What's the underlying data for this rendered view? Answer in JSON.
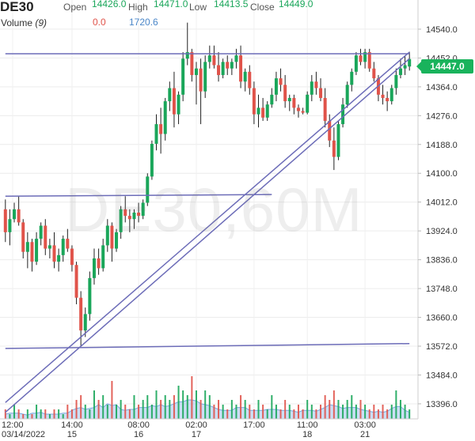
{
  "header": {
    "symbol": "DE30",
    "open_label": "Open",
    "open": "14426.0",
    "high_label": "High",
    "high": "14471.0",
    "low_label": "Low",
    "low": "14413.5",
    "close_label": "Close",
    "close": "14449.0",
    "volume_label": "Volume",
    "volume_period": "(9)",
    "volume_value_1": "0.0",
    "volume_value_2": "1720.6"
  },
  "watermark": "DE30,60M",
  "last_price": "14447.0",
  "colors": {
    "up": "#1aa65a",
    "down": "#e0534a",
    "trendline": "#6c6cb8",
    "volume_area": "#a8c8ee",
    "last_tag": "#19b35c"
  },
  "chart_data": {
    "type": "candlestick",
    "title": "DE30,60M",
    "y_ticks": [
      14540.0,
      14452.0,
      14364.0,
      14276.0,
      14188.0,
      14100.0,
      14012.0,
      13924.0,
      13836.0,
      13748.0,
      13660.0,
      13572.0,
      13484.0,
      13396.0
    ],
    "ylim": [
      13350,
      14605
    ],
    "x_tick_labels": [
      {
        "time": "12:00",
        "date": "03/14/2022"
      },
      {
        "time": "14:00",
        "date": "15"
      },
      {
        "time": "08:00",
        "date": "16"
      },
      {
        "time": "02:00",
        "date": "17"
      },
      {
        "time": "17:00",
        "date": ""
      },
      {
        "time": "11:00",
        "date": "18"
      },
      {
        "time": "03:00",
        "date": "21"
      }
    ],
    "grid": true,
    "series": [
      {
        "name": "DE30",
        "values": [
          [
            13990,
            14020,
            13890,
            13920
          ],
          [
            13920,
            13990,
            13880,
            13960
          ],
          [
            13960,
            14010,
            13950,
            13990
          ],
          [
            13990,
            14030,
            13940,
            13950
          ],
          [
            13950,
            13960,
            13840,
            13860
          ],
          [
            13860,
            13920,
            13810,
            13890
          ],
          [
            13890,
            13900,
            13800,
            13830
          ],
          [
            13830,
            13920,
            13820,
            13900
          ],
          [
            13900,
            13950,
            13880,
            13940
          ],
          [
            13940,
            13960,
            13850,
            13870
          ],
          [
            13870,
            13900,
            13840,
            13880
          ],
          [
            13880,
            13920,
            13810,
            13830
          ],
          [
            13830,
            13870,
            13800,
            13850
          ],
          [
            13850,
            13910,
            13830,
            13900
          ],
          [
            13900,
            13930,
            13860,
            13870
          ],
          [
            13870,
            13880,
            13800,
            13820
          ],
          [
            13820,
            13830,
            13700,
            13720
          ],
          [
            13720,
            13740,
            13572,
            13620
          ],
          [
            13620,
            13690,
            13600,
            13670
          ],
          [
            13670,
            13800,
            13650,
            13780
          ],
          [
            13780,
            13870,
            13760,
            13840
          ],
          [
            13840,
            13870,
            13790,
            13810
          ],
          [
            13810,
            13900,
            13800,
            13880
          ],
          [
            13880,
            13960,
            13860,
            13940
          ],
          [
            13940,
            13950,
            13830,
            13870
          ],
          [
            13870,
            13930,
            13860,
            13920
          ],
          [
            13920,
            14000,
            13900,
            13990
          ],
          [
            13990,
            14030,
            13950,
            13970
          ],
          [
            13970,
            13990,
            13920,
            13960
          ],
          [
            13960,
            13990,
            13930,
            13980
          ],
          [
            13980,
            14010,
            13950,
            13970
          ],
          [
            13970,
            14020,
            13960,
            14010
          ],
          [
            14010,
            14100,
            14000,
            14090
          ],
          [
            14090,
            14200,
            14080,
            14190
          ],
          [
            14190,
            14280,
            14170,
            14250
          ],
          [
            14250,
            14300,
            14160,
            14220
          ],
          [
            14220,
            14330,
            14200,
            14320
          ],
          [
            14320,
            14380,
            14290,
            14360
          ],
          [
            14360,
            14410,
            14240,
            14280
          ],
          [
            14280,
            14350,
            14250,
            14340
          ],
          [
            14340,
            14470,
            14320,
            14450
          ],
          [
            14450,
            14560,
            14430,
            14470
          ],
          [
            14470,
            14480,
            14380,
            14400
          ],
          [
            14400,
            14440,
            14310,
            14420
          ],
          [
            14420,
            14450,
            14250,
            14350
          ],
          [
            14350,
            14460,
            14330,
            14440
          ],
          [
            14440,
            14490,
            14420,
            14460
          ],
          [
            14460,
            14490,
            14420,
            14430
          ],
          [
            14430,
            14470,
            14380,
            14400
          ],
          [
            14400,
            14450,
            14390,
            14440
          ],
          [
            14440,
            14460,
            14400,
            14420
          ],
          [
            14420,
            14450,
            14400,
            14440
          ],
          [
            14440,
            14480,
            14420,
            14460
          ],
          [
            14460,
            14490,
            14360,
            14380
          ],
          [
            14380,
            14420,
            14350,
            14410
          ],
          [
            14410,
            14430,
            14340,
            14360
          ],
          [
            14360,
            14380,
            14250,
            14280
          ],
          [
            14280,
            14340,
            14240,
            14300
          ],
          [
            14300,
            14330,
            14260,
            14270
          ],
          [
            14270,
            14320,
            14260,
            14310
          ],
          [
            14310,
            14360,
            14300,
            14340
          ],
          [
            14340,
            14410,
            14320,
            14390
          ],
          [
            14390,
            14420,
            14350,
            14370
          ],
          [
            14370,
            14400,
            14300,
            14320
          ],
          [
            14320,
            14340,
            14290,
            14330
          ],
          [
            14330,
            14340,
            14280,
            14300
          ],
          [
            14300,
            14310,
            14270,
            14290
          ],
          [
            14290,
            14300,
            14280,
            14285
          ],
          [
            14285,
            14350,
            14280,
            14340
          ],
          [
            14340,
            14400,
            14320,
            14380
          ],
          [
            14380,
            14410,
            14340,
            14360
          ],
          [
            14360,
            14390,
            14320,
            14330
          ],
          [
            14330,
            14360,
            14240,
            14260
          ],
          [
            14260,
            14280,
            14180,
            14200
          ],
          [
            14200,
            14240,
            14110,
            14150
          ],
          [
            14150,
            14260,
            14140,
            14250
          ],
          [
            14250,
            14330,
            14240,
            14310
          ],
          [
            14310,
            14380,
            14300,
            14370
          ],
          [
            14370,
            14420,
            14350,
            14410
          ],
          [
            14410,
            14470,
            14400,
            14460
          ],
          [
            14460,
            14480,
            14430,
            14440
          ],
          [
            14440,
            14480,
            14420,
            14470
          ],
          [
            14470,
            14480,
            14410,
            14420
          ],
          [
            14420,
            14440,
            14380,
            14390
          ],
          [
            14390,
            14400,
            14320,
            14340
          ],
          [
            14340,
            14370,
            14310,
            14330
          ],
          [
            14330,
            14350,
            14290,
            14320
          ],
          [
            14320,
            14370,
            14310,
            14360
          ],
          [
            14360,
            14420,
            14340,
            14400
          ],
          [
            14400,
            14450,
            14390,
            14420
          ],
          [
            14420,
            14460,
            14400,
            14430
          ],
          [
            14426,
            14471,
            14413.5,
            14449
          ]
        ]
      }
    ],
    "volume": [
      2,
      1,
      3,
      2,
      1,
      2,
      1,
      3,
      2,
      2,
      1,
      2,
      2,
      1,
      3,
      2,
      4,
      5,
      3,
      2,
      6,
      4,
      5,
      3,
      8,
      3,
      4,
      3,
      2,
      5,
      3,
      4,
      5,
      3,
      6,
      4,
      5,
      4,
      5,
      7,
      6,
      5,
      9,
      6,
      4,
      6,
      5,
      3,
      4,
      3,
      2,
      4,
      3,
      5,
      4,
      3,
      2,
      4,
      3,
      2,
      5,
      3,
      2,
      4,
      3,
      2,
      3,
      2,
      4,
      3,
      2,
      3,
      5,
      4,
      6,
      4,
      3,
      4,
      5,
      3,
      4,
      3,
      2,
      3,
      2,
      3,
      2,
      3,
      6,
      4,
      3,
      2
    ],
    "channel_lines": [
      {
        "from": [
          0,
          13370
        ],
        "to": [
          91,
          14450
        ]
      },
      {
        "from": [
          0,
          13400
        ],
        "to": [
          91,
          14470
        ]
      },
      {
        "from": [
          0,
          14465
        ],
        "to": [
          91,
          14465
        ]
      },
      {
        "from": [
          0,
          14030
        ],
        "to": [
          60,
          14035
        ]
      },
      {
        "from": [
          0,
          13565
        ],
        "to": [
          91,
          13580
        ]
      }
    ]
  }
}
